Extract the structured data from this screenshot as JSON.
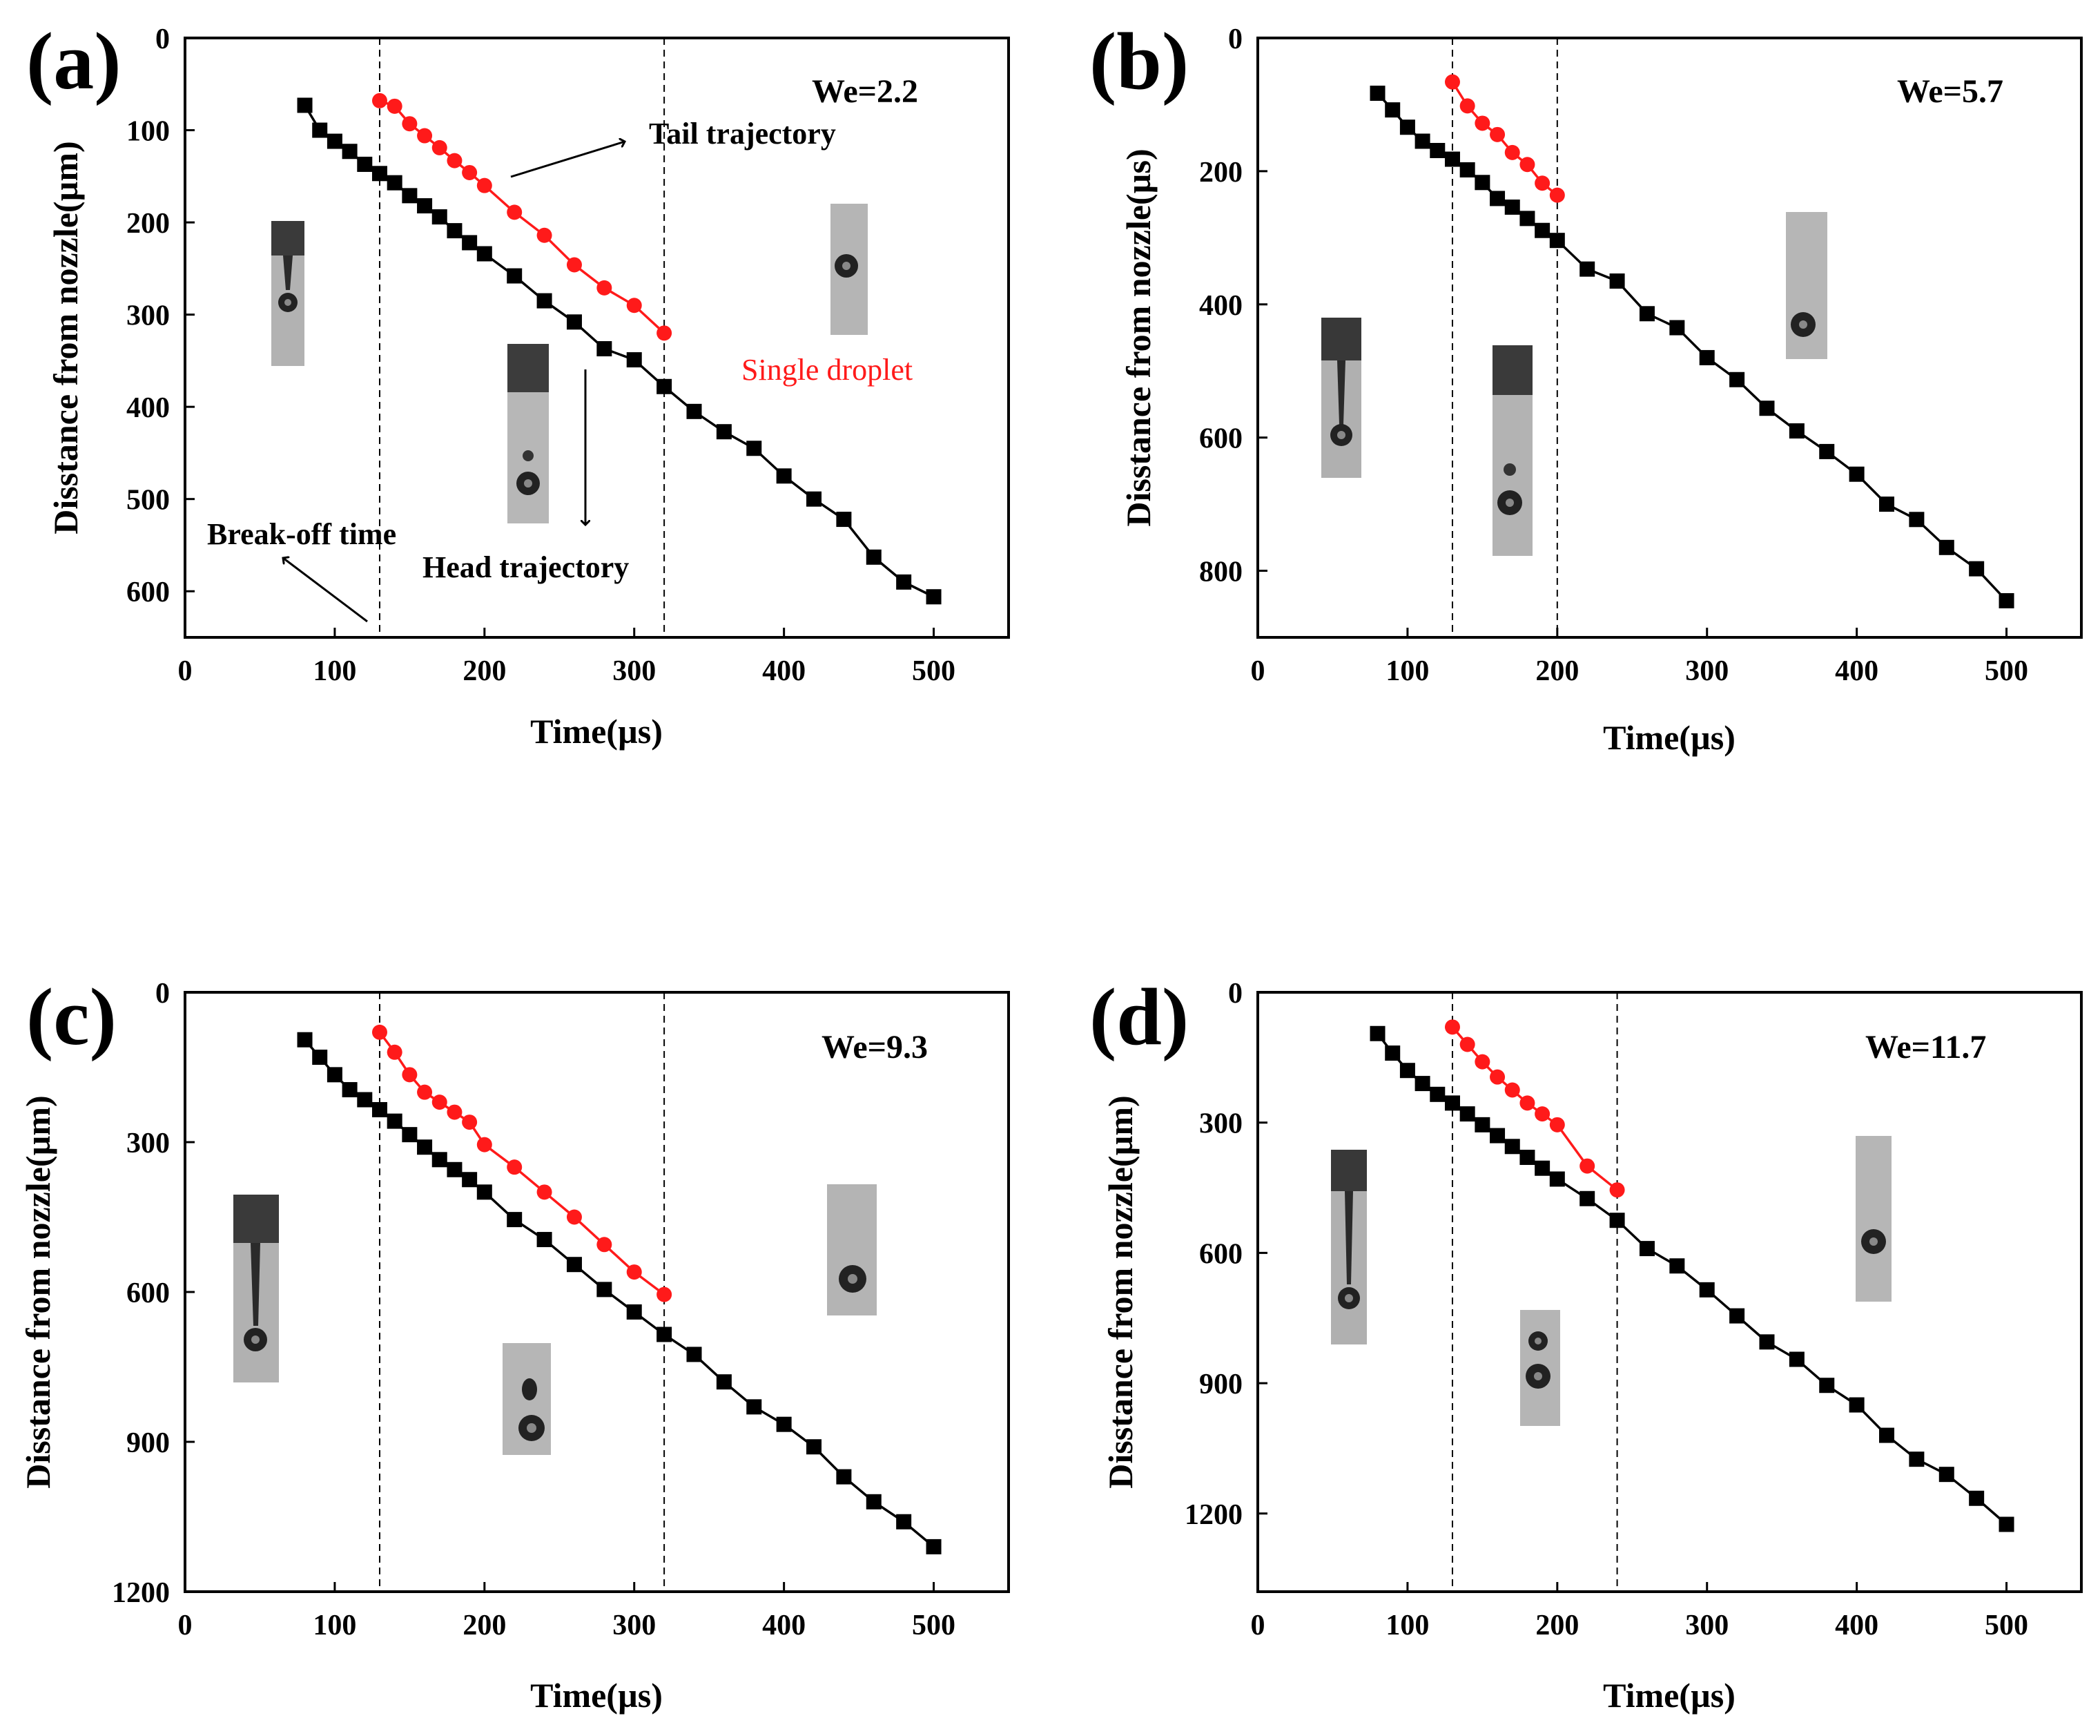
{
  "chart_data": [
    {
      "type": "line",
      "panel": "(a)",
      "we_label": "We=2.2",
      "xlabel": "Time(µs)",
      "ylabel": "Disstance from nozzle(µm)",
      "xlim": [
        0,
        550
      ],
      "ylim": [
        0,
        650
      ],
      "y_inverted": true,
      "xticks": [
        0,
        100,
        200,
        300,
        400,
        500
      ],
      "yticks": [
        0,
        100,
        200,
        300,
        400,
        500,
        600
      ],
      "break_off_lines": [
        130,
        320
      ],
      "annotations": {
        "tail": "Tail trajectory",
        "head": "Head trajectory",
        "breakoff": "Break-off  time",
        "single": "Single droplet"
      },
      "series": [
        {
          "name": "Head trajectory",
          "color": "#000000",
          "marker": "square",
          "x": [
            80,
            90,
            100,
            110,
            120,
            130,
            140,
            150,
            160,
            170,
            180,
            190,
            200,
            220,
            240,
            260,
            280,
            300,
            320,
            340,
            360,
            380,
            400,
            420,
            440,
            460,
            480,
            500
          ],
          "y": [
            73,
            100,
            112,
            123,
            137,
            147,
            157,
            171,
            182,
            194,
            209,
            222,
            234,
            258,
            285,
            308,
            337,
            349,
            378,
            405,
            427,
            445,
            475,
            500,
            522,
            563,
            590,
            606
          ]
        },
        {
          "name": "Tail trajectory",
          "color": "#ff1a1a",
          "marker": "circle",
          "x": [
            130,
            140,
            150,
            160,
            170,
            180,
            190,
            200,
            220,
            240,
            260,
            280,
            300,
            320
          ],
          "y": [
            68,
            74,
            93,
            106,
            119,
            133,
            146,
            160,
            189,
            214,
            246,
            271,
            290,
            320
          ]
        }
      ]
    },
    {
      "type": "line",
      "panel": "(b)",
      "we_label": "We=5.7",
      "xlabel": "Time(µs)",
      "ylabel": "Disstance from nozzle(µs)",
      "xlim": [
        0,
        550
      ],
      "ylim": [
        0,
        900
      ],
      "y_inverted": true,
      "xticks": [
        0,
        100,
        200,
        300,
        400,
        500
      ],
      "yticks": [
        0,
        200,
        400,
        600,
        800
      ],
      "break_off_lines": [
        130,
        200
      ],
      "series": [
        {
          "name": "Head trajectory",
          "color": "#000000",
          "marker": "square",
          "x": [
            80,
            90,
            100,
            110,
            120,
            130,
            140,
            150,
            160,
            170,
            180,
            190,
            200,
            220,
            240,
            260,
            280,
            300,
            320,
            340,
            360,
            380,
            400,
            420,
            440,
            460,
            480,
            500
          ],
          "y": [
            83,
            108,
            134,
            155,
            169,
            182,
            198,
            217,
            241,
            254,
            271,
            289,
            304,
            347,
            365,
            414,
            435,
            480,
            513,
            556,
            590,
            621,
            655,
            700,
            723,
            765,
            797,
            845
          ]
        },
        {
          "name": "Tail trajectory",
          "color": "#ff1a1a",
          "marker": "circle",
          "x": [
            130,
            140,
            150,
            160,
            170,
            180,
            190,
            200
          ],
          "y": [
            66,
            102,
            128,
            145,
            172,
            190,
            218,
            236
          ]
        }
      ]
    },
    {
      "type": "line",
      "panel": "(c)",
      "we_label": "We=9.3",
      "xlabel": "Time(µs)",
      "ylabel": "Disstance from nozzle(µm)",
      "xlim": [
        0,
        550
      ],
      "ylim": [
        0,
        1200
      ],
      "y_inverted": true,
      "xticks": [
        0,
        100,
        200,
        300,
        400,
        500
      ],
      "yticks": [
        0,
        300,
        600,
        900,
        1200
      ],
      "break_off_lines": [
        130,
        320
      ],
      "series": [
        {
          "name": "Head trajectory",
          "color": "#000000",
          "marker": "square",
          "x": [
            80,
            90,
            100,
            110,
            120,
            130,
            140,
            150,
            160,
            170,
            180,
            190,
            200,
            220,
            240,
            260,
            280,
            300,
            320,
            340,
            360,
            380,
            400,
            420,
            440,
            460,
            480,
            500
          ],
          "y": [
            95,
            130,
            165,
            195,
            215,
            235,
            258,
            285,
            310,
            335,
            355,
            375,
            400,
            455,
            495,
            545,
            595,
            640,
            685,
            725,
            780,
            830,
            865,
            910,
            970,
            1020,
            1060,
            1110
          ]
        },
        {
          "name": "Tail trajectory",
          "color": "#ff1a1a",
          "marker": "circle",
          "x": [
            130,
            140,
            150,
            160,
            170,
            180,
            190,
            200,
            220,
            240,
            260,
            280,
            300,
            320
          ],
          "y": [
            80,
            120,
            165,
            200,
            220,
            240,
            260,
            305,
            350,
            400,
            450,
            505,
            560,
            605
          ]
        }
      ]
    },
    {
      "type": "line",
      "panel": "(d)",
      "we_label": "We=11.7",
      "xlabel": "Time(µs)",
      "ylabel": "Disstance from nozzle(µm)",
      "xlim": [
        0,
        550
      ],
      "ylim": [
        0,
        1380
      ],
      "y_inverted": true,
      "xticks": [
        0,
        100,
        200,
        300,
        400,
        500
      ],
      "yticks": [
        0,
        300,
        600,
        900,
        1200
      ],
      "break_off_lines": [
        130,
        240
      ],
      "series": [
        {
          "name": "Head trajectory",
          "color": "#000000",
          "marker": "square",
          "x": [
            80,
            90,
            100,
            110,
            120,
            130,
            140,
            150,
            160,
            170,
            180,
            190,
            200,
            220,
            240,
            260,
            280,
            300,
            320,
            340,
            360,
            380,
            400,
            420,
            440,
            460,
            480,
            500
          ],
          "y": [
            95,
            140,
            180,
            210,
            235,
            255,
            280,
            305,
            330,
            355,
            380,
            405,
            430,
            475,
            525,
            590,
            630,
            685,
            745,
            805,
            845,
            905,
            950,
            1020,
            1075,
            1110,
            1165,
            1225
          ]
        },
        {
          "name": "Tail trajectory",
          "color": "#ff1a1a",
          "marker": "circle",
          "x": [
            130,
            140,
            150,
            160,
            170,
            180,
            190,
            200,
            220,
            240
          ],
          "y": [
            80,
            120,
            160,
            195,
            225,
            255,
            280,
            305,
            400,
            455
          ]
        }
      ]
    }
  ]
}
